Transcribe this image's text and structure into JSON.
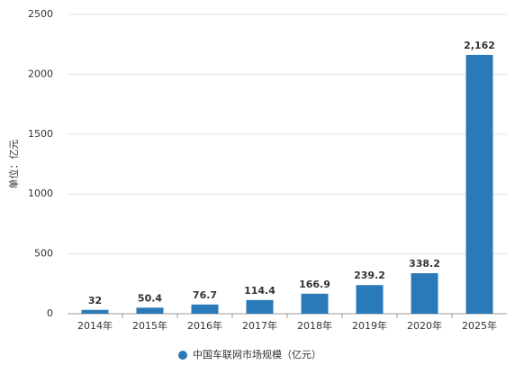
{
  "chart_data": {
    "type": "bar",
    "y_label": "单位：亿元",
    "categories": [
      "2014年",
      "2015年",
      "2016年",
      "2017年",
      "2018年",
      "2019年",
      "2020年",
      "2025年"
    ],
    "series": [
      {
        "name": "中国车联网市场规模（亿元）",
        "color": "#2a7ab9",
        "values": [
          32,
          50.4,
          76.7,
          114.4,
          166.9,
          239.2,
          338.2,
          2162
        ],
        "value_labels": [
          "32",
          "50.4",
          "76.7",
          "114.4",
          "166.9",
          "239.2",
          "338.2",
          "2,162"
        ]
      }
    ],
    "ylim": [
      0,
      2500
    ],
    "yticks": [
      0,
      500,
      1000,
      1500,
      2000,
      2500
    ],
    "grid": true,
    "legend": "bottom"
  }
}
